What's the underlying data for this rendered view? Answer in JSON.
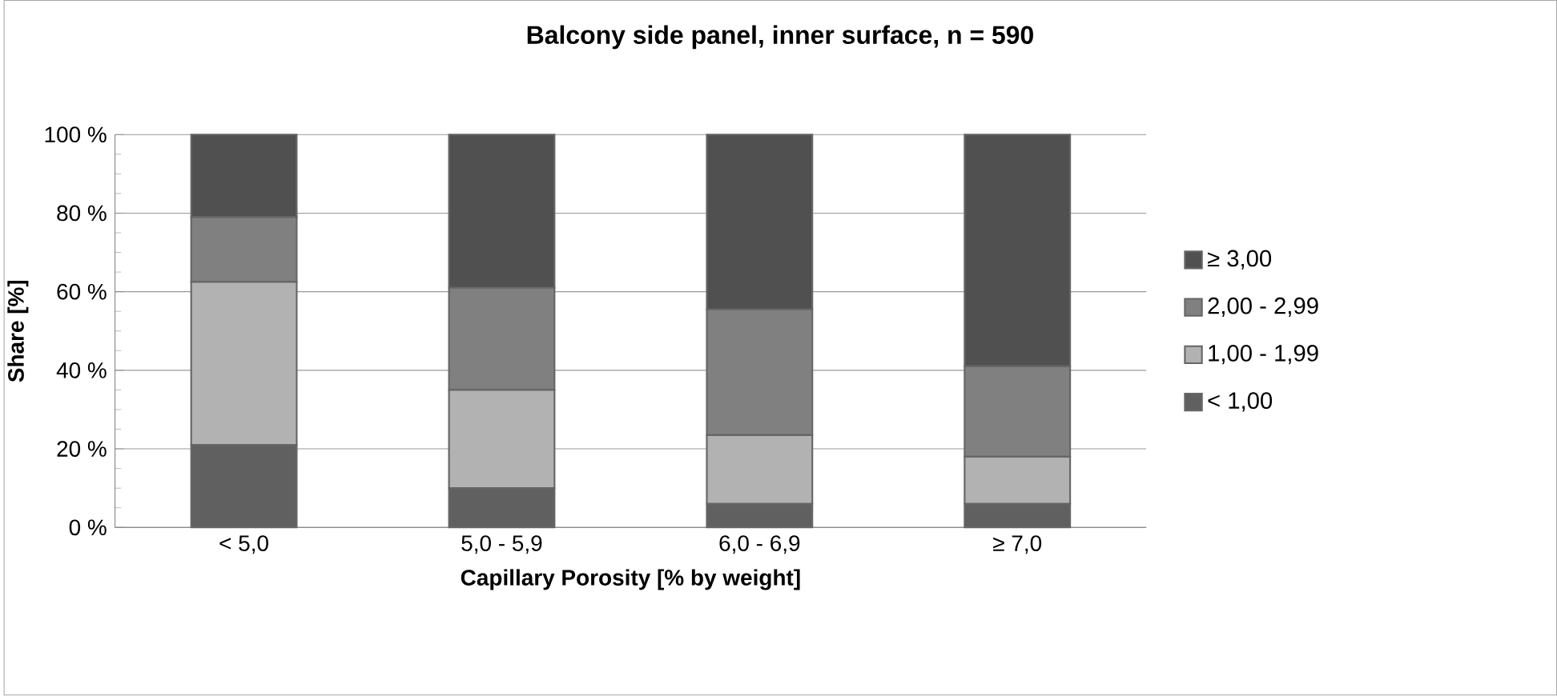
{
  "chart_data": {
    "type": "bar",
    "stacked": true,
    "title": "Balcony side panel, inner surface, n = 590",
    "xlabel": "Capillary Porosity [% by weight]",
    "ylabel": "Share [%]",
    "categories": [
      "< 5,0",
      "5,0 - 5,9",
      "6,0 - 6,9",
      "≥ 7,0"
    ],
    "series": [
      {
        "name": "< 1,00",
        "color": "#606060",
        "values": [
          21,
          10,
          6,
          6
        ]
      },
      {
        "name": "1,00 - 1,99",
        "color": "#b2b2b2",
        "values": [
          41.5,
          25,
          17.5,
          12
        ]
      },
      {
        "name": "2,00 - 2,99",
        "color": "#808080",
        "values": [
          16.5,
          26,
          32,
          23
        ]
      },
      {
        "name": "≥ 3,00",
        "color": "#505050",
        "values": [
          21,
          39,
          44.5,
          59
        ]
      }
    ],
    "ylim": [
      0,
      100
    ],
    "yticks": [
      {
        "value": 0,
        "label": "0 %"
      },
      {
        "value": 20,
        "label": "20 %"
      },
      {
        "value": 40,
        "label": "40 %"
      },
      {
        "value": 60,
        "label": "60 %"
      },
      {
        "value": 80,
        "label": "80 %"
      },
      {
        "value": 100,
        "label": "100 %"
      }
    ],
    "grid": "y",
    "legend": "right"
  }
}
